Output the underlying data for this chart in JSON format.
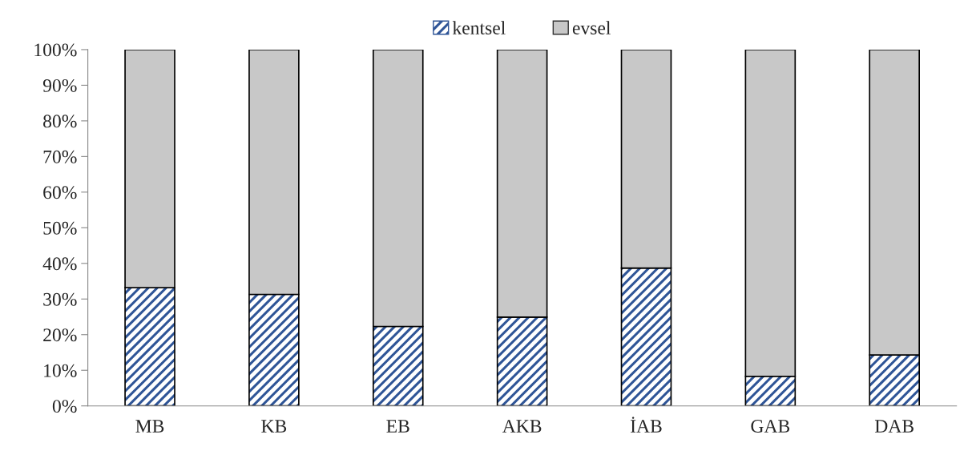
{
  "chart_data": {
    "type": "bar",
    "stacked": true,
    "categories": [
      "MB",
      "KB",
      "EB",
      "AKB",
      "İAB",
      "GAB",
      "DAB"
    ],
    "series": [
      {
        "name": "kentsel",
        "color": "#2f5597",
        "values": [
          33.2,
          31.3,
          22.3,
          24.9,
          38.7,
          8.3,
          14.3
        ]
      },
      {
        "name": "evsel",
        "color": "#c8c8c8",
        "values": [
          66.8,
          68.7,
          77.7,
          75.1,
          61.3,
          91.7,
          85.7
        ]
      }
    ],
    "ylim": [
      0,
      100
    ],
    "yticks": [
      {
        "value": 0,
        "label": "0%"
      },
      {
        "value": 10,
        "label": "10%"
      },
      {
        "value": 20,
        "label": "20%"
      },
      {
        "value": 30,
        "label": "30%"
      },
      {
        "value": 40,
        "label": "40%"
      },
      {
        "value": 50,
        "label": "50%"
      },
      {
        "value": 60,
        "label": "60%"
      },
      {
        "value": 70,
        "label": "70%"
      },
      {
        "value": 80,
        "label": "80%"
      },
      {
        "value": 90,
        "label": "90%"
      },
      {
        "value": 100,
        "label": "100%"
      }
    ],
    "legend": "top"
  }
}
